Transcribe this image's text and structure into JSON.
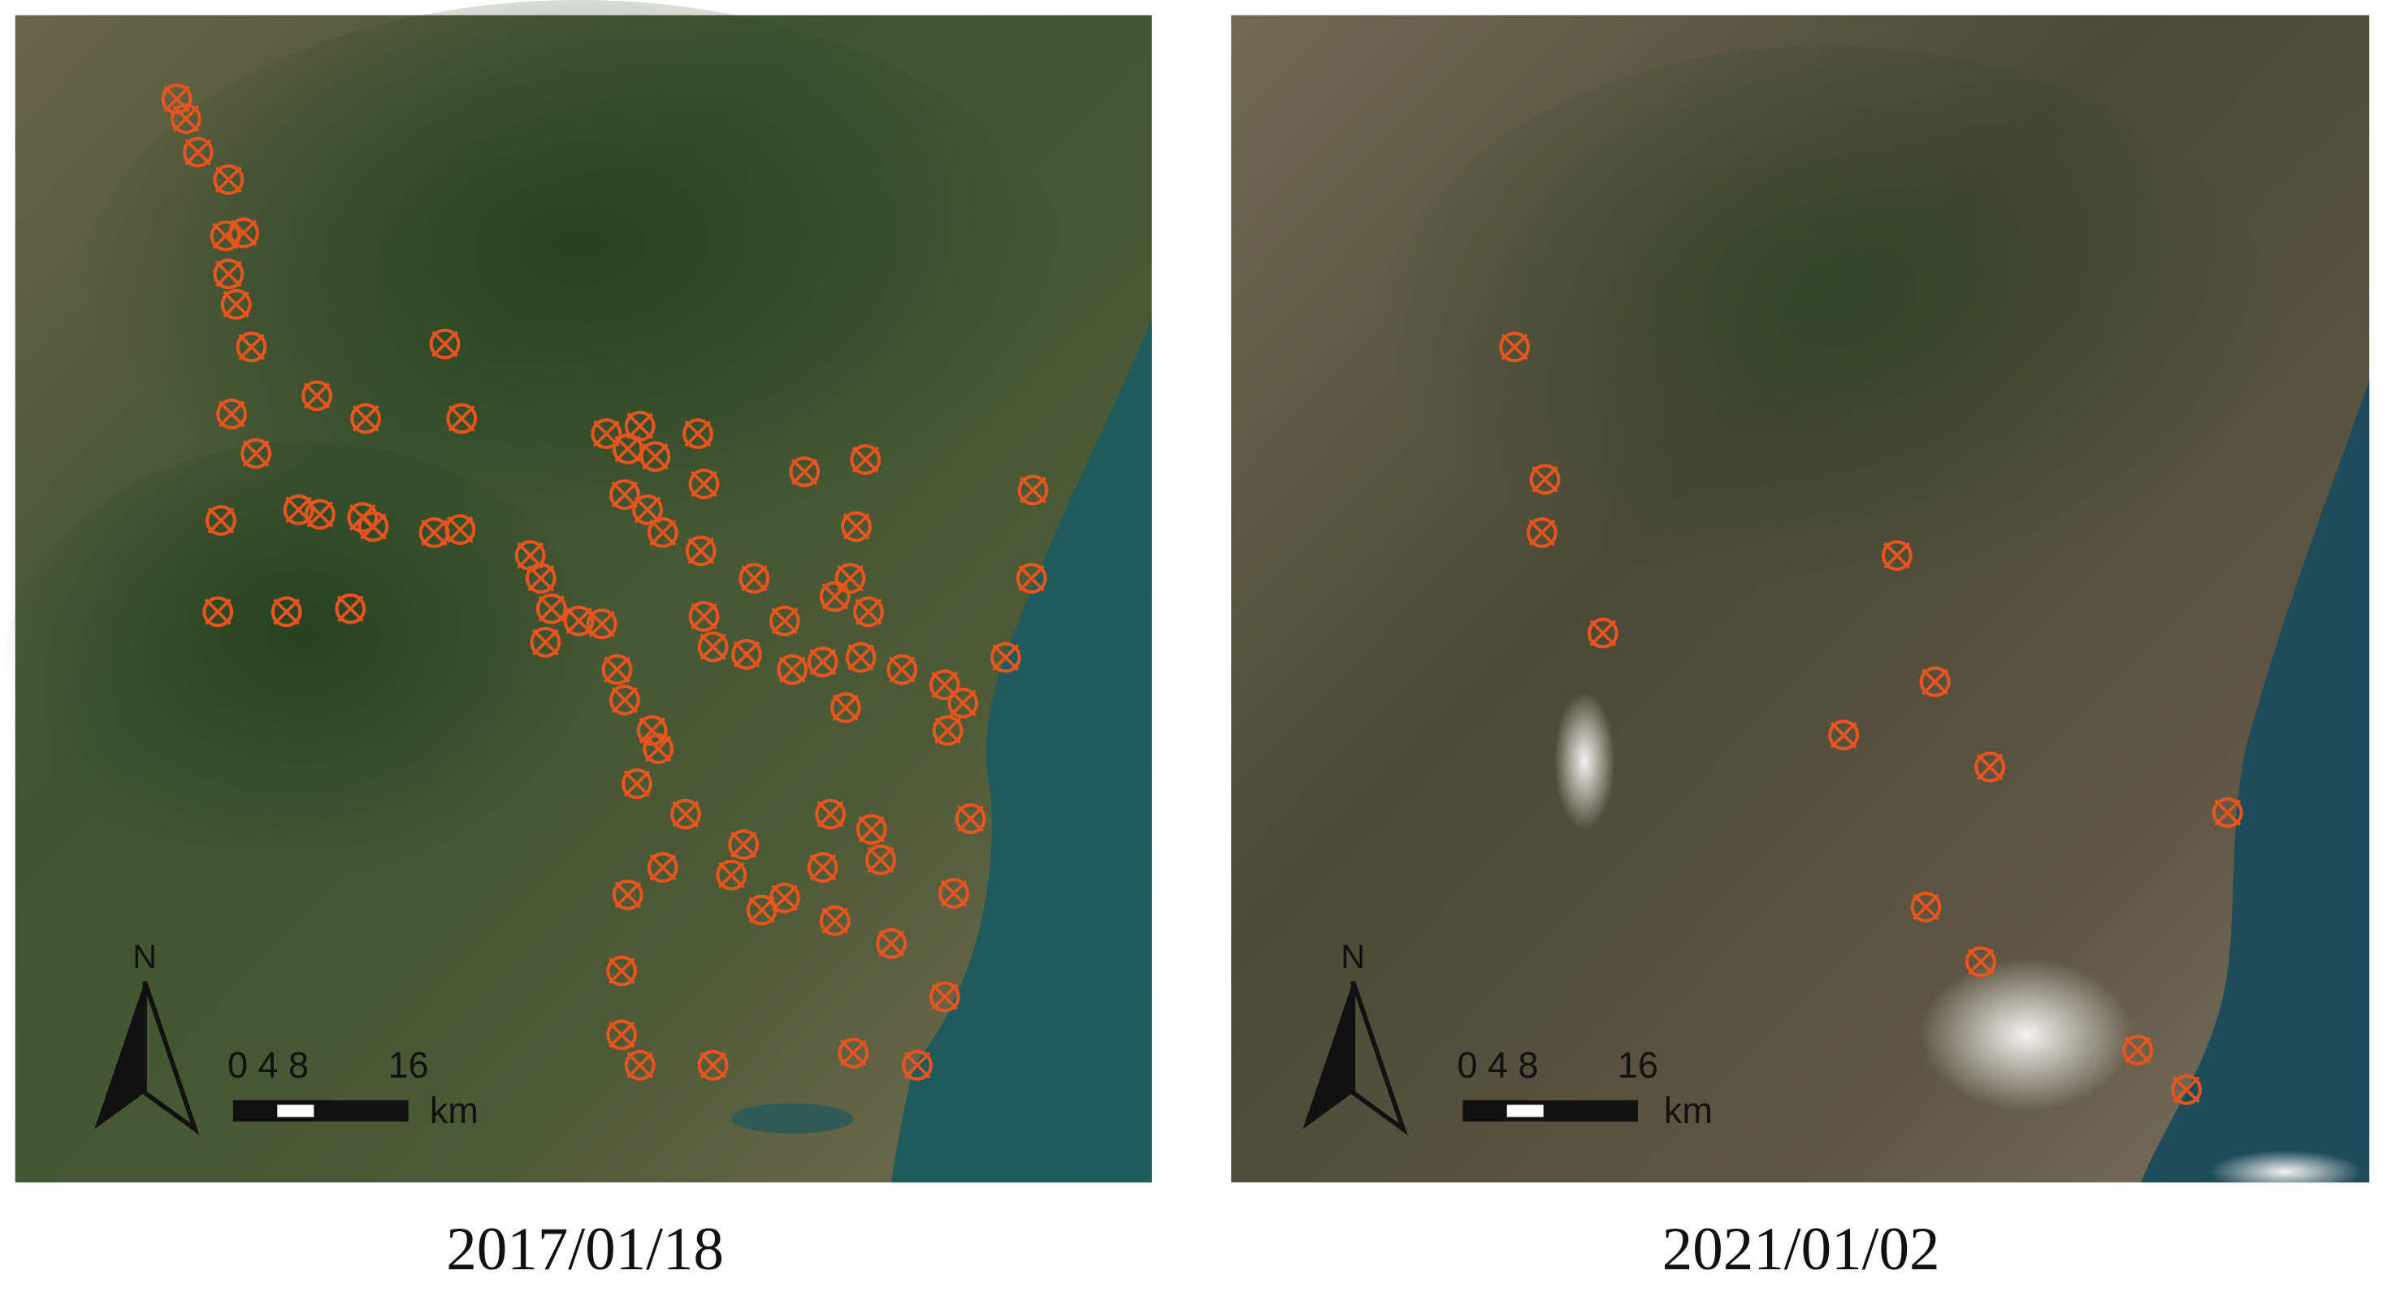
{
  "panels": [
    {
      "date": "2017/01/18",
      "north": "N",
      "scale_labels": [
        "0 4 8",
        "16"
      ],
      "scale_unit": "km"
    },
    {
      "date": "2021/01/02",
      "north": "N",
      "scale_labels": [
        "0 4 8",
        "16"
      ],
      "scale_unit": "km"
    }
  ]
}
